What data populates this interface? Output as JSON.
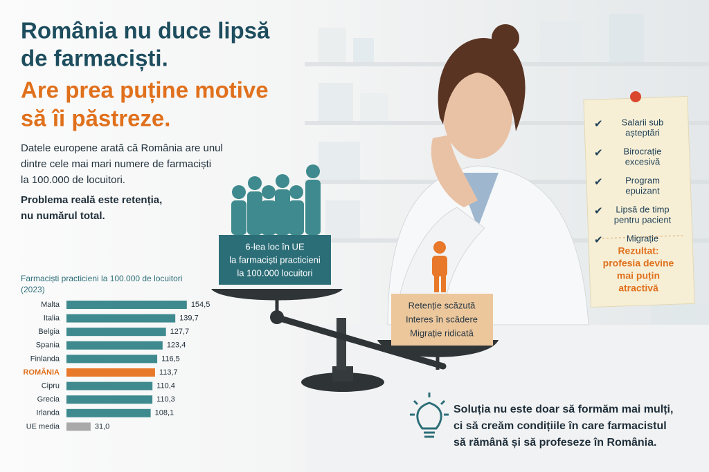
{
  "headline": [
    "România nu duce lipsă",
    "de farmaciști."
  ],
  "headline_accent": [
    "Are prea puține motive",
    "să îi păstreze."
  ],
  "intro": [
    "Datele europene arată că România are unul",
    "dintre cele mai mari numere de farmaciști",
    "la 100.000 de locuitori."
  ],
  "intro_bold": [
    "Problema reală este retenția,",
    "nu numărul total."
  ],
  "chart_data": {
    "type": "bar",
    "orientation": "horizontal",
    "title": "Farmaciști practicieni la 100.000 de locuitori",
    "subtitle": "(2023)",
    "categories": [
      "Malta",
      "Italia",
      "Belgia",
      "Spania",
      "Finlanda",
      "ROMÂNIA",
      "Cipru",
      "Grecia",
      "Irlanda",
      "UE media"
    ],
    "values": [
      154.5,
      139.7,
      127.7,
      123.4,
      116.5,
      113.7,
      110.4,
      110.3,
      108.1,
      31.0
    ],
    "value_labels": [
      "154,5",
      "139,7",
      "127,7",
      "123,4",
      "116,5",
      "113,7",
      "110,4",
      "110,3",
      "108,1",
      "31,0"
    ],
    "colors": [
      "#3e8a8e",
      "#3e8a8e",
      "#3e8a8e",
      "#3e8a8e",
      "#3e8a8e",
      "#e8792a",
      "#3e8a8e",
      "#3e8a8e",
      "#3e8a8e",
      "#a9a9a9"
    ],
    "xlim": [
      0,
      160
    ]
  },
  "scale": {
    "left_box": [
      "6-lea loc în UE",
      "la farmaciști practicieni",
      "la 100.000 locuitori"
    ],
    "right_box": [
      "Retenție scăzută",
      "Interes în scădere",
      "Migrație ridicată"
    ]
  },
  "note": {
    "items": [
      [
        "Salarii sub",
        "așteptări"
      ],
      [
        "Birocrație",
        "excesivă"
      ],
      [
        "Program",
        "epuizant"
      ],
      [
        "Lipsă de timp",
        "pentru pacient"
      ],
      [
        "Migrație"
      ]
    ],
    "result": [
      "Rezultat:",
      "profesia devine",
      "mai puțin",
      "atractivă"
    ]
  },
  "solution": [
    "Soluția nu este doar să formăm mai mulți,",
    "ci să creăm condițiile în care farmacistul",
    "să rămână și să profeseze în România."
  ]
}
